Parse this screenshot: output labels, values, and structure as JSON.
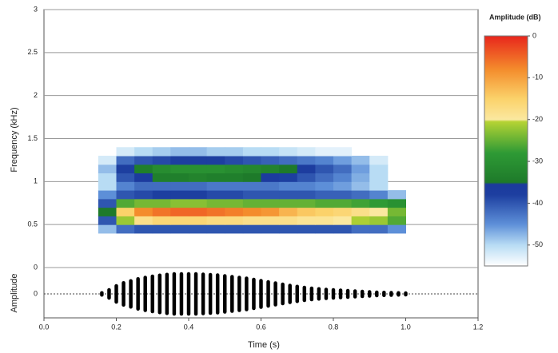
{
  "chart_data": {
    "type": "spectrogram",
    "xlabel": "Time (s)",
    "ylabel": "Frequency (kHz)",
    "xlim": [
      0,
      1.2
    ],
    "xticks": [
      {
        "value": 0,
        "label": "0.0"
      },
      0.2,
      0.4,
      0.6,
      0.8,
      {
        "value": 1,
        "label": "1.0"
      },
      1.2
    ],
    "ylim": [
      0,
      3
    ],
    "yticks": [
      0,
      0.5,
      1,
      1.5,
      2,
      2.5,
      3
    ],
    "grid": true,
    "time_bins": [
      0.15,
      0.2,
      0.25,
      0.3,
      0.35,
      0.4,
      0.45,
      0.5,
      0.55,
      0.6,
      0.65,
      0.7,
      0.75,
      0.8,
      0.85,
      0.9,
      0.95,
      1.0
    ],
    "frequency_bins": [
      0.4,
      0.5,
      0.6,
      0.7,
      0.8,
      0.9,
      1.0,
      1.1,
      1.2,
      1.3,
      1.4
    ],
    "amplitude": [
      [
        -48,
        -42,
        -40,
        -40,
        -40,
        -40,
        -40,
        -40,
        -40,
        -40,
        -40,
        -40,
        -40,
        -40,
        -42,
        -42,
        -45
      ],
      [
        -40,
        -22,
        -18,
        -16,
        -16,
        -16,
        -17,
        -17,
        -18,
        -18,
        -18,
        -19,
        -19,
        -20,
        -21,
        -22,
        -26
      ],
      [
        -35,
        -15,
        -8,
        -6,
        -5,
        -5,
        -6,
        -7,
        -8,
        -9,
        -12,
        -14,
        -15,
        -16,
        -18,
        -20,
        -24
      ],
      [
        -40,
        -26,
        -24,
        -24,
        -23,
        -23,
        -24,
        -24,
        -25,
        -25,
        -25,
        -25,
        -26,
        -26,
        -27,
        -28,
        -30
      ],
      [
        -45,
        -40,
        -39,
        -38,
        -38,
        -38,
        -39,
        -39,
        -40,
        -40,
        -40,
        -40,
        -41,
        -41,
        -42,
        -44,
        -48
      ],
      [
        -50,
        -44,
        -42,
        -42,
        -42,
        -42,
        -43,
        -43,
        -43,
        -43,
        -44,
        -44,
        -45,
        -46,
        -48,
        -50,
        null
      ],
      [
        -50,
        -40,
        -36,
        -34,
        -34,
        -33,
        -34,
        -34,
        -35,
        -36,
        -38,
        -40,
        -42,
        -44,
        -47,
        -50,
        null
      ],
      [
        -48,
        -38,
        -34,
        -31,
        -30,
        -30,
        -30,
        -31,
        -32,
        -33,
        -35,
        -37,
        -40,
        -42,
        -46,
        -50,
        null
      ],
      [
        -52,
        -42,
        -40,
        -39,
        -38,
        -38,
        -38,
        -39,
        -40,
        -41,
        -42,
        -43,
        -44,
        -46,
        -48,
        -52,
        null
      ],
      [
        null,
        -52,
        -50,
        -49,
        -48,
        -48,
        -49,
        -49,
        -50,
        -50,
        -51,
        -52,
        -53,
        -53,
        null,
        null,
        null
      ]
    ],
    "colorbar": {
      "label": "Amplitude (dB)",
      "lim": [
        -55,
        0
      ],
      "ticks": [
        0,
        -10,
        -20,
        -30,
        -40,
        -50
      ],
      "colormap": [
        {
          "value": -55,
          "color": "#ffffff"
        },
        {
          "value": -50,
          "color": "#b8dcf4"
        },
        {
          "value": -45,
          "color": "#5d8fd8"
        },
        {
          "value": -38,
          "color": "#1d3fa0"
        },
        {
          "value": -35.5,
          "color": "#1c3a9e"
        },
        {
          "value": -35,
          "color": "#1e7a2a"
        },
        {
          "value": -28,
          "color": "#2e9a35"
        },
        {
          "value": -20.5,
          "color": "#b5d334"
        },
        {
          "value": -20,
          "color": "#fbe8a0"
        },
        {
          "value": -15,
          "color": "#fbd26a"
        },
        {
          "value": -8,
          "color": "#f48c2c"
        },
        {
          "value": 0,
          "color": "#e8261c"
        }
      ]
    },
    "waveform": {
      "ylabel": "Amplitude",
      "ylim": [
        -1.2,
        1.2
      ],
      "yticks": [
        0
      ],
      "color": "#000000",
      "x": [
        0.16,
        0.18,
        0.2,
        0.22,
        0.24,
        0.26,
        0.28,
        0.3,
        0.32,
        0.34,
        0.36,
        0.38,
        0.4,
        0.42,
        0.44,
        0.46,
        0.48,
        0.5,
        0.52,
        0.54,
        0.56,
        0.58,
        0.6,
        0.62,
        0.64,
        0.66,
        0.68,
        0.7,
        0.72,
        0.74,
        0.76,
        0.78,
        0.8,
        0.82,
        0.84,
        0.86,
        0.88,
        0.9,
        0.92,
        0.94,
        0.96,
        0.98,
        1.0
      ],
      "values": [
        0.05,
        0.2,
        0.4,
        0.55,
        0.65,
        0.75,
        0.82,
        0.88,
        0.93,
        0.97,
        1,
        1,
        1,
        1,
        0.98,
        0.96,
        0.94,
        0.9,
        0.86,
        0.82,
        0.78,
        0.72,
        0.66,
        0.6,
        0.54,
        0.48,
        0.42,
        0.37,
        0.32,
        0.28,
        0.25,
        0.22,
        0.2,
        0.18,
        0.16,
        0.14,
        0.12,
        0.1,
        0.08,
        0.07,
        0.06,
        0.05,
        0.04
      ]
    }
  }
}
